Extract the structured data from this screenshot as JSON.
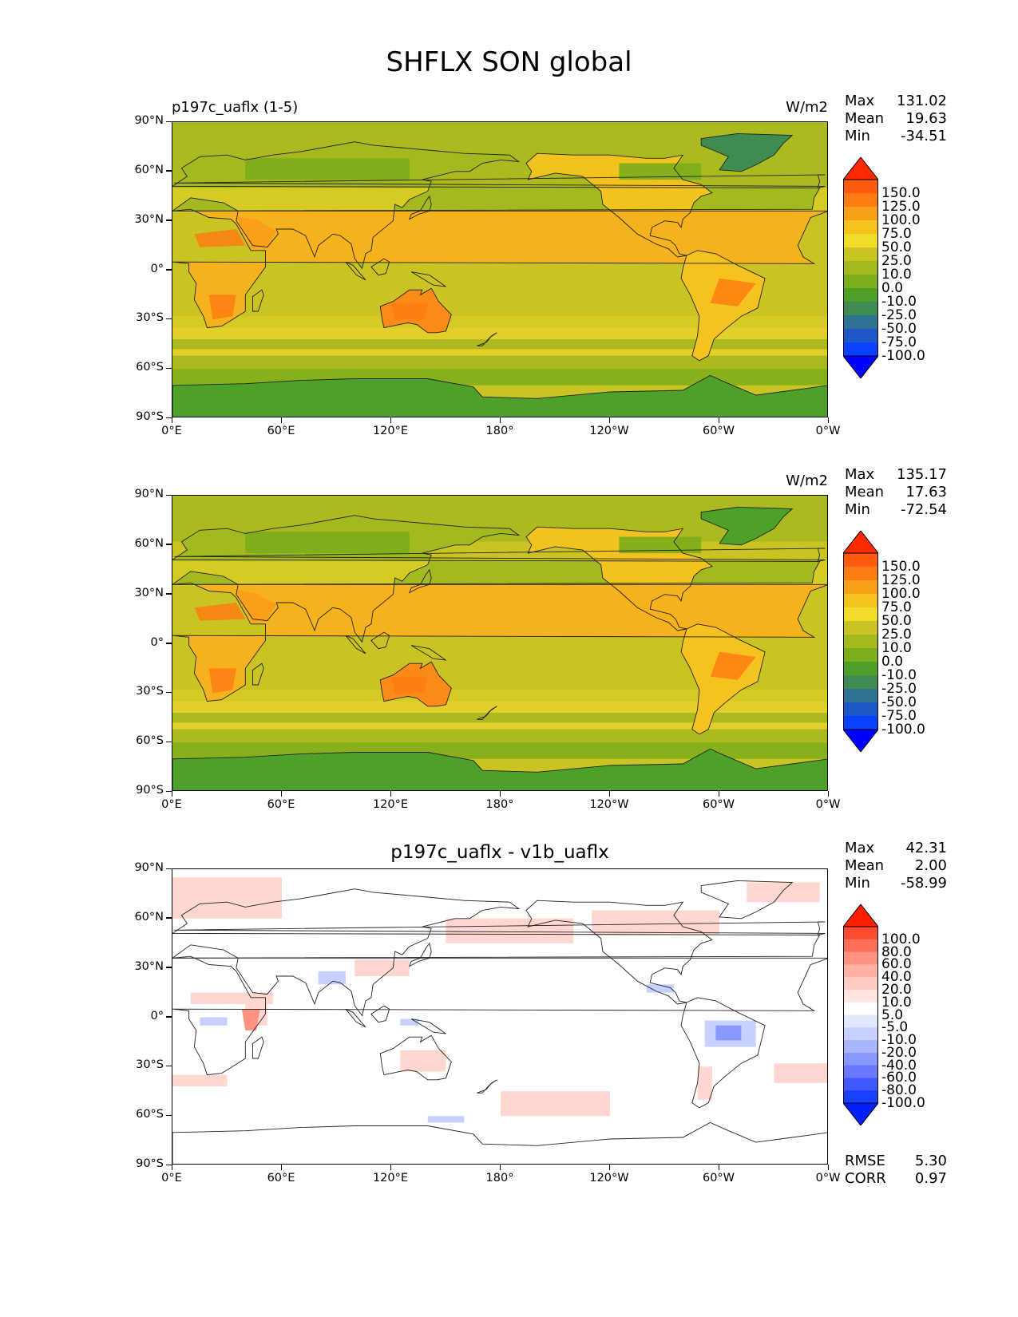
{
  "figure_title": "SHFLX SON global",
  "panels": [
    {
      "left_title": "p197c_uaflx (1-5)",
      "center_title": "",
      "units": "W/m2",
      "stats": [
        [
          "Max",
          "131.02"
        ],
        [
          "Mean",
          "19.63"
        ],
        [
          "Min",
          "-34.51"
        ]
      ],
      "colorbar": "field"
    },
    {
      "left_title": "",
      "center_title": "",
      "units": "W/m2",
      "stats": [
        [
          "Max",
          "135.17"
        ],
        [
          "Mean",
          "17.63"
        ],
        [
          "Min",
          "-72.54"
        ]
      ],
      "colorbar": "field"
    },
    {
      "left_title": "",
      "center_title": "p197c_uaflx - v1b_uaflx",
      "units": "",
      "stats": [
        [
          "Max",
          "42.31"
        ],
        [
          "Mean",
          "2.00"
        ],
        [
          "Min",
          "-58.99"
        ]
      ],
      "colorbar": "diff",
      "metrics": [
        [
          "RMSE",
          "5.30"
        ],
        [
          "CORR",
          "0.97"
        ]
      ]
    }
  ],
  "colorbars": {
    "field": {
      "labels": [
        "150.0",
        "125.0",
        "100.0",
        "75.0",
        "50.0",
        "25.0",
        "10.0",
        "0.0",
        "-10.0",
        "-25.0",
        "-50.0",
        "-75.0",
        "-100.0"
      ],
      "colors": [
        "#ff2a00",
        "#ff5a10",
        "#fd7d12",
        "#fb9e18",
        "#f6c21f",
        "#f2dc2a",
        "#c9c423",
        "#a4b81f",
        "#7cad1a",
        "#4da028",
        "#3e8c52",
        "#2e7294",
        "#1c58c8",
        "#0a40ff",
        "#0000ff"
      ]
    },
    "diff": {
      "labels": [
        "100.0",
        "80.0",
        "60.0",
        "40.0",
        "20.0",
        "10.0",
        "5.0",
        "-5.0",
        "-10.0",
        "-20.0",
        "-40.0",
        "-60.0",
        "-80.0",
        "-100.0"
      ],
      "colors": [
        "#ff2000",
        "#ff4a30",
        "#ff6e56",
        "#ff9280",
        "#ffb2a4",
        "#ffccc4",
        "#ffe6e2",
        "#ffffff",
        "#e4e8ff",
        "#c8d0ff",
        "#a8b6ff",
        "#8898ff",
        "#6878ff",
        "#4058ff",
        "#1840ff",
        "#0020ff"
      ]
    }
  },
  "chart_data": [
    {
      "type": "heatmap",
      "title": "p197c_uaflx (1-5)",
      "units": "W/m2",
      "xlim": [
        0,
        360
      ],
      "ylim": [
        -90,
        90
      ],
      "x_ticks": [
        "0°E",
        "60°E",
        "120°E",
        "180°",
        "120°W",
        "60°W",
        "0°W"
      ],
      "y_ticks": [
        "90°N",
        "60°N",
        "30°N",
        "0°",
        "30°S",
        "60°S",
        "90°S"
      ],
      "stats": {
        "max": 131.02,
        "mean": 19.63,
        "min": -34.51
      }
    },
    {
      "type": "heatmap",
      "title": "",
      "units": "W/m2",
      "xlim": [
        0,
        360
      ],
      "ylim": [
        -90,
        90
      ],
      "x_ticks": [
        "0°E",
        "60°E",
        "120°E",
        "180°",
        "120°W",
        "60°W",
        "0°W"
      ],
      "y_ticks": [
        "90°N",
        "60°N",
        "30°N",
        "0°",
        "30°S",
        "60°S",
        "90°S"
      ],
      "stats": {
        "max": 135.17,
        "mean": 17.63,
        "min": -72.54
      }
    },
    {
      "type": "heatmap",
      "title": "p197c_uaflx - v1b_uaflx",
      "units": "",
      "xlim": [
        0,
        360
      ],
      "ylim": [
        -90,
        90
      ],
      "x_ticks": [
        "0°E",
        "60°E",
        "120°E",
        "180°",
        "120°W",
        "60°W",
        "0°W"
      ],
      "y_ticks": [
        "90°N",
        "60°N",
        "30°N",
        "0°",
        "30°S",
        "60°S",
        "90°S"
      ],
      "stats": {
        "max": 42.31,
        "mean": 2.0,
        "min": -58.99,
        "rmse": 5.3,
        "corr": 0.97
      }
    }
  ]
}
